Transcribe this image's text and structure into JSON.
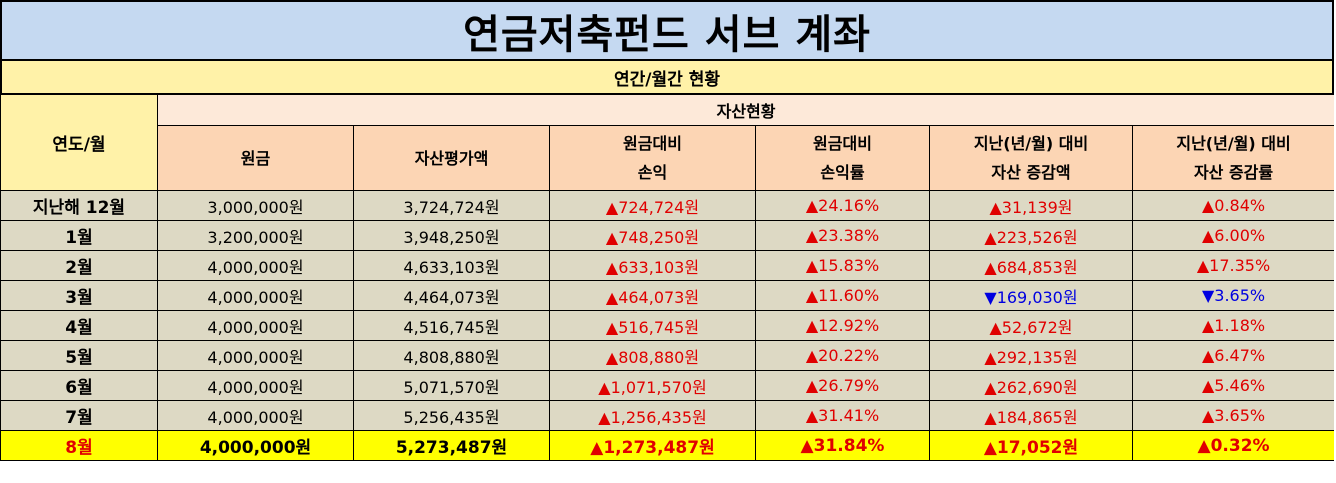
{
  "title": "연금저축펀드 서브 계좌",
  "subtitle": "연간/월간 현황",
  "headers": {
    "year_month": "연도/월",
    "asset_status": "자산현황",
    "principal": "원금",
    "asset_value": "자산평가액",
    "pl_vs_principal_1": "원금대비",
    "pl_vs_principal_2": "손익",
    "pl_rate_1": "원금대비",
    "pl_rate_2": "손익률",
    "change_amount_1": "지난(년/월) 대비",
    "change_amount_2": "자산 증감액",
    "change_rate_1": "지난(년/월) 대비",
    "change_rate_2": "자산 증감률"
  },
  "colors": {
    "up": "#e00000",
    "down": "#0000e0",
    "current_row_bg": "#ffff00"
  },
  "rows": [
    {
      "label": "지난해 12월",
      "principal": "3,000,000원",
      "asset_value": "3,724,724원",
      "pl": "▲724,724원",
      "pl_rate": "▲24.16%",
      "change_amount": "▲31,139원",
      "change_rate": "▲0.84%",
      "change_dir": "up"
    },
    {
      "label": "1월",
      "principal": "3,200,000원",
      "asset_value": "3,948,250원",
      "pl": "▲748,250원",
      "pl_rate": "▲23.38%",
      "change_amount": "▲223,526원",
      "change_rate": "▲6.00%",
      "change_dir": "up"
    },
    {
      "label": "2월",
      "principal": "4,000,000원",
      "asset_value": "4,633,103원",
      "pl": "▲633,103원",
      "pl_rate": "▲15.83%",
      "change_amount": "▲684,853원",
      "change_rate": "▲17.35%",
      "change_dir": "up"
    },
    {
      "label": "3월",
      "principal": "4,000,000원",
      "asset_value": "4,464,073원",
      "pl": "▲464,073원",
      "pl_rate": "▲11.60%",
      "change_amount": "▼169,030원",
      "change_rate": "▼3.65%",
      "change_dir": "down"
    },
    {
      "label": "4월",
      "principal": "4,000,000원",
      "asset_value": "4,516,745원",
      "pl": "▲516,745원",
      "pl_rate": "▲12.92%",
      "change_amount": "▲52,672원",
      "change_rate": "▲1.18%",
      "change_dir": "up"
    },
    {
      "label": "5월",
      "principal": "4,000,000원",
      "asset_value": "4,808,880원",
      "pl": "▲808,880원",
      "pl_rate": "▲20.22%",
      "change_amount": "▲292,135원",
      "change_rate": "▲6.47%",
      "change_dir": "up"
    },
    {
      "label": "6월",
      "principal": "4,000,000원",
      "asset_value": "5,071,570원",
      "pl": "▲1,071,570원",
      "pl_rate": "▲26.79%",
      "change_amount": "▲262,690원",
      "change_rate": "▲5.46%",
      "change_dir": "up"
    },
    {
      "label": "7월",
      "principal": "4,000,000원",
      "asset_value": "5,256,435원",
      "pl": "▲1,256,435원",
      "pl_rate": "▲31.41%",
      "change_amount": "▲184,865원",
      "change_rate": "▲3.65%",
      "change_dir": "up"
    },
    {
      "label": "8월",
      "principal": "4,000,000원",
      "asset_value": "5,273,487원",
      "pl": "▲1,273,487원",
      "pl_rate": "▲31.84%",
      "change_amount": "▲17,052원",
      "change_rate": "▲0.32%",
      "change_dir": "up",
      "current": true
    }
  ]
}
